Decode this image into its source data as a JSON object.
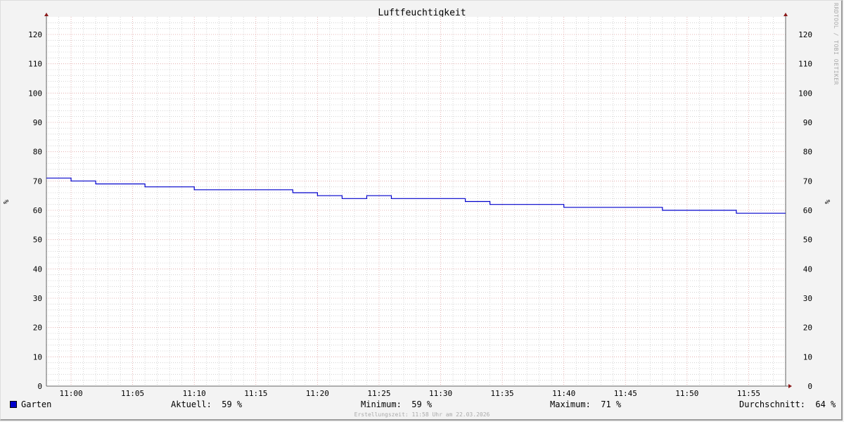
{
  "chart_data": {
    "type": "line",
    "step": true,
    "title": "Luftfeuchtigkeit",
    "ylabel": "%",
    "ylabel_right": "%",
    "ylim": [
      0,
      126
    ],
    "yticks": [
      0,
      10,
      20,
      30,
      40,
      50,
      60,
      70,
      80,
      90,
      100,
      110,
      120
    ],
    "xlim": [
      "10:58",
      "11:58"
    ],
    "xticks": [
      "11:00",
      "11:05",
      "11:10",
      "11:15",
      "11:20",
      "11:25",
      "11:30",
      "11:35",
      "11:40",
      "11:45",
      "11:50",
      "11:55"
    ],
    "grid": true,
    "color": "#0000cc",
    "series": [
      {
        "name": "Garten",
        "points": [
          [
            "10:58",
            71
          ],
          [
            "11:00",
            70
          ],
          [
            "11:02",
            69
          ],
          [
            "11:06",
            68
          ],
          [
            "11:10",
            67
          ],
          [
            "11:18",
            66
          ],
          [
            "11:20",
            65
          ],
          [
            "11:22",
            64
          ],
          [
            "11:24",
            65
          ],
          [
            "11:26",
            64
          ],
          [
            "11:32",
            63
          ],
          [
            "11:34",
            62
          ],
          [
            "11:40",
            61
          ],
          [
            "11:48",
            60
          ],
          [
            "11:54",
            59
          ],
          [
            "11:58",
            59
          ]
        ]
      }
    ]
  },
  "watermark": "RRDTOOL / TOBI OETIKER",
  "legend": {
    "series_name": "Garten",
    "current": "Aktuell:  59 %",
    "minimum": "Minimum:  59 %",
    "maximum": "Maximum:  71 %",
    "average": "Durchschnitt:  64 %"
  },
  "footer": "Erstellungszeit: 11:58 Uhr am 22.03.2026"
}
